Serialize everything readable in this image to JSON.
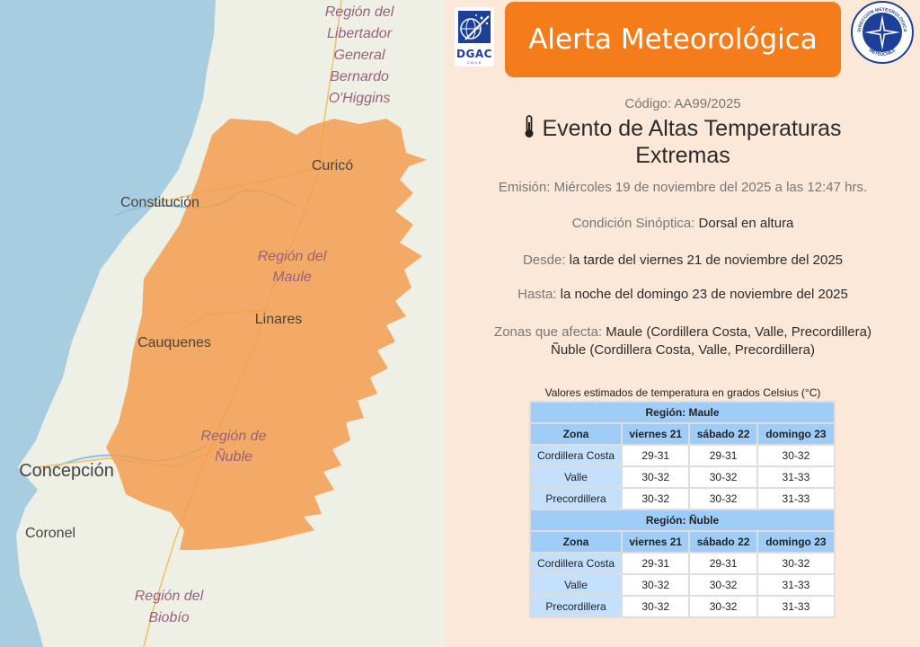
{
  "map": {
    "labels": {
      "region_ohiggins": [
        "Región del",
        "Libertador",
        "General",
        "Bernardo",
        "O'Higgins"
      ],
      "curico": "Curicó",
      "constitucion": "Constitución",
      "region_maule": [
        "Región del",
        "Maule"
      ],
      "linares": "Linares",
      "cauquenes": "Cauquenes",
      "region_nuble": [
        "Región de",
        "Ñuble"
      ],
      "concepcion": "Concepción",
      "coronel": "Coronel",
      "region_biobio": [
        "Región del",
        "Biobío"
      ]
    },
    "colors": {
      "sea": "#a9cde0",
      "land": "#eef0e6",
      "alert": "#f59a4b"
    }
  },
  "header": {
    "logo_left": "DGAC",
    "logo_left_sub": "CHILE",
    "title": "Alerta Meteorológica",
    "logo_right_top": "DIRECCION METEOROLOGICA",
    "logo_right_bottom": "METEOCHILE"
  },
  "alert": {
    "code_label": "Código:",
    "code_value": "AA99/2025",
    "event_line1": "Evento de Altas Temperaturas",
    "event_line2": "Extremas",
    "emision_label": "Emisión:",
    "emision_value": "Miércoles 19 de noviembre del 2025 a las 12:47 hrs.",
    "condicion_label": "Condición Sinóptica:",
    "condicion_value": "Dorsal en altura",
    "desde_label": "Desde:",
    "desde_value": "la tarde del viernes 21 de noviembre del 2025",
    "hasta_label": "Hasta:",
    "hasta_value": "la noche del domingo 23 de noviembre del 2025",
    "zonas_label": "Zonas que afecta:",
    "zonas_value1": "Maule (Cordillera Costa, Valle, Precordillera)",
    "zonas_value2": "Ñuble (Cordillera Costa, Valle, Precordillera)"
  },
  "table": {
    "caption": "Valores estimados de temperatura en grados Celsius (°C)",
    "headers": [
      "Zona",
      "viernes 21",
      "sábado 22",
      "domingo 23"
    ],
    "regions": [
      {
        "title": "Región: Maule",
        "rows": [
          [
            "Cordillera Costa",
            "29-31",
            "29-31",
            "30-32"
          ],
          [
            "Valle",
            "30-32",
            "30-32",
            "31-33"
          ],
          [
            "Precordillera",
            "30-32",
            "30-32",
            "31-33"
          ]
        ]
      },
      {
        "title": "Región: Ñuble",
        "rows": [
          [
            "Cordillera Costa",
            "29-31",
            "29-31",
            "30-32"
          ],
          [
            "Valle",
            "30-32",
            "30-32",
            "31-33"
          ],
          [
            "Precordillera",
            "30-32",
            "30-32",
            "31-33"
          ]
        ]
      }
    ]
  }
}
